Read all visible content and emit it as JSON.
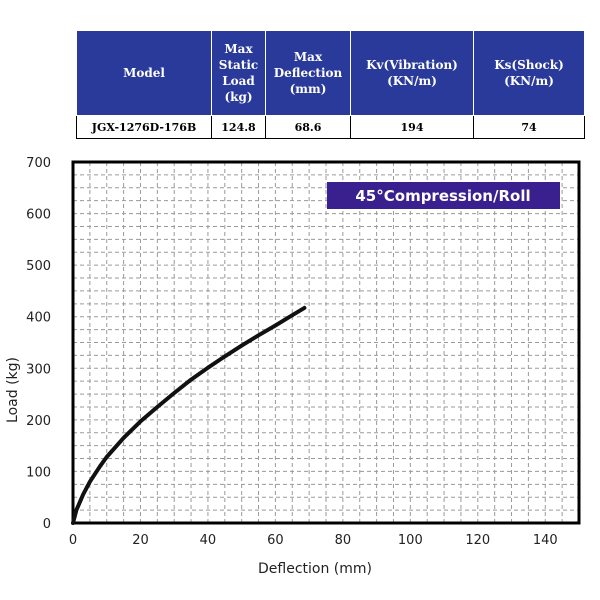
{
  "spec_table": {
    "headers": [
      [
        "Model"
      ],
      [
        "Max",
        "Static",
        "Load",
        "(kg)"
      ],
      [
        "Max",
        "Deflection",
        "(mm)"
      ],
      [
        "Kv(Vibration)",
        "(KN/m)"
      ],
      [
        "Ks(Shock)",
        "(KN/m)"
      ]
    ],
    "row": [
      "JGX-1276D-176B",
      "124.8",
      "68.6",
      "194",
      "74"
    ],
    "header_color": "#2a3a9a"
  },
  "chart_data": {
    "type": "line",
    "title": "45°Compression/Roll",
    "xlabel": "Deflection (mm)",
    "ylabel": "Load (kg)",
    "xlim": [
      0,
      150
    ],
    "ylim": [
      0,
      700
    ],
    "xticks": [
      0,
      20,
      40,
      60,
      80,
      100,
      120,
      140
    ],
    "yticks": [
      0,
      100,
      200,
      300,
      400,
      500,
      600,
      700
    ],
    "grid": true,
    "legend_position": "top-right",
    "badge_color": "#3a1f8f",
    "series": [
      {
        "name": "45°Compression/Roll",
        "color": "#111111",
        "x": [
          0,
          1,
          3,
          5,
          8,
          10,
          15,
          20,
          25,
          30,
          35,
          40,
          45,
          50,
          55,
          60,
          65,
          68.6
        ],
        "y": [
          0,
          25,
          55,
          80,
          110,
          128,
          165,
          197,
          225,
          252,
          278,
          301,
          323,
          344,
          364,
          383,
          403,
          417
        ]
      }
    ]
  }
}
